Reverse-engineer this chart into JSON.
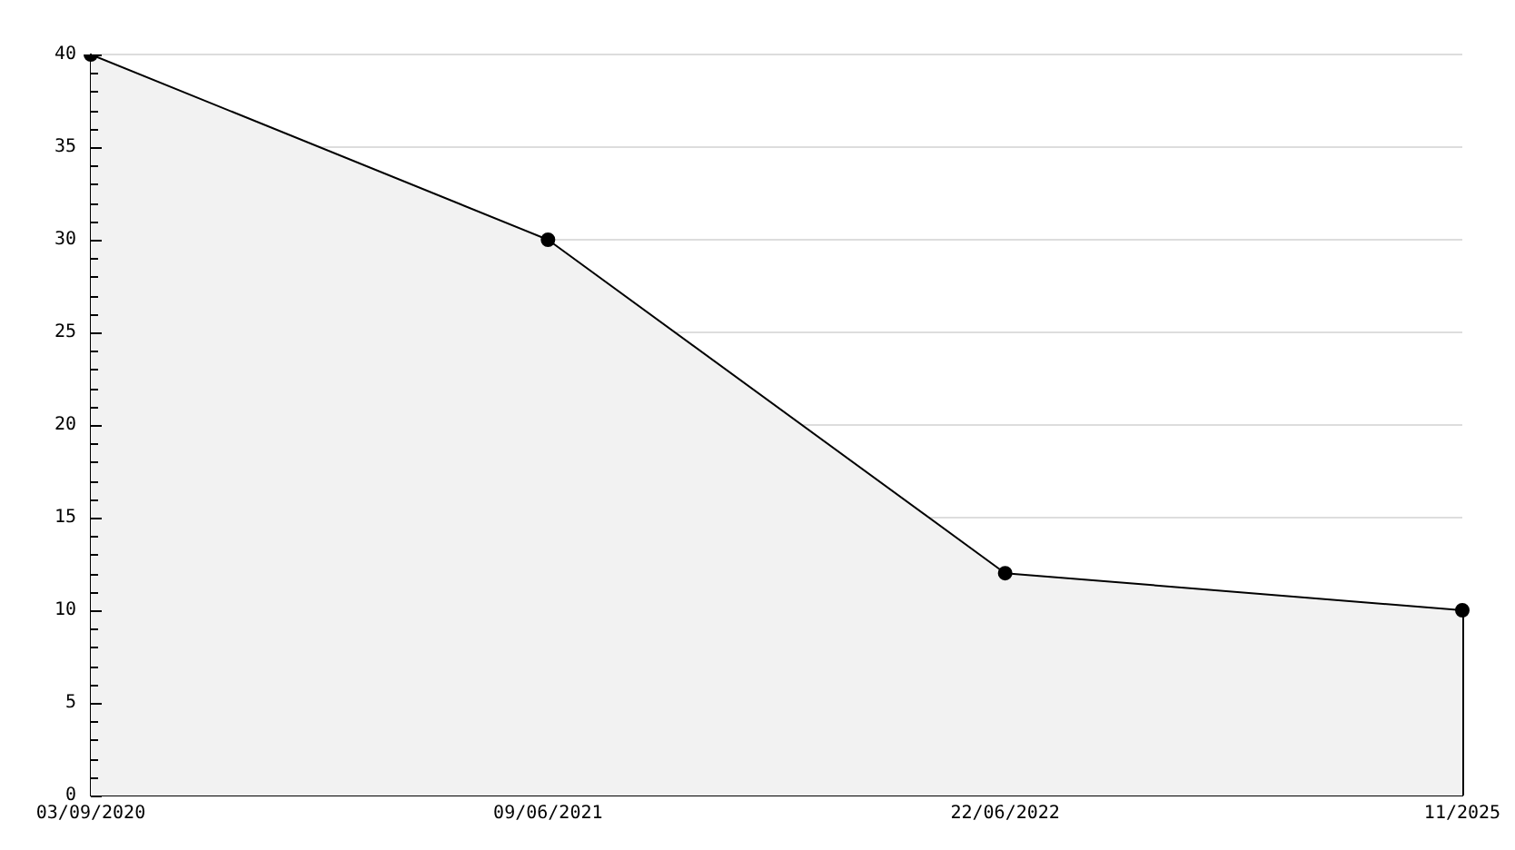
{
  "chart_data": {
    "type": "area",
    "categories": [
      "03/09/2020",
      "09/06/2021",
      "22/06/2022",
      "11/2025"
    ],
    "values": [
      40,
      30,
      12,
      10
    ],
    "color": "#f2f2f2",
    "ylim": [
      0,
      40
    ],
    "yticks": [
      0,
      {
        "value": 1,
        "label": null
      },
      {
        "value": 2,
        "label": null
      },
      {
        "value": 3,
        "label": null
      },
      {
        "value": 4,
        "label": null
      },
      5,
      {
        "value": 6,
        "label": null
      },
      {
        "value": 7,
        "label": null
      },
      {
        "value": 8,
        "label": null
      },
      {
        "value": 9,
        "label": null
      },
      10,
      {
        "value": 11,
        "label": null
      },
      {
        "value": 12,
        "label": null
      },
      {
        "value": 13,
        "label": null
      },
      {
        "value": 14,
        "label": null
      },
      15,
      {
        "value": 16,
        "label": null
      },
      {
        "value": 17,
        "label": null
      },
      {
        "value": 18,
        "label": null
      },
      {
        "value": 19,
        "label": null
      },
      20,
      {
        "value": 21,
        "label": null
      },
      {
        "value": 22,
        "label": null
      },
      {
        "value": 23,
        "label": null
      },
      {
        "value": 24,
        "label": null
      },
      25,
      {
        "value": 26,
        "label": null
      },
      {
        "value": 27,
        "label": null
      },
      {
        "value": 28,
        "label": null
      },
      {
        "value": 29,
        "label": null
      },
      30,
      {
        "value": 31,
        "label": null
      },
      {
        "value": 32,
        "label": null
      },
      {
        "value": 33,
        "label": null
      },
      {
        "value": 34,
        "label": null
      },
      35,
      {
        "value": 36,
        "label": null
      },
      {
        "value": 37,
        "label": null
      },
      {
        "value": 38,
        "label": null
      },
      {
        "value": 39,
        "label": null
      },
      40
    ],
    "grid": "y",
    "marker": "circle"
  }
}
